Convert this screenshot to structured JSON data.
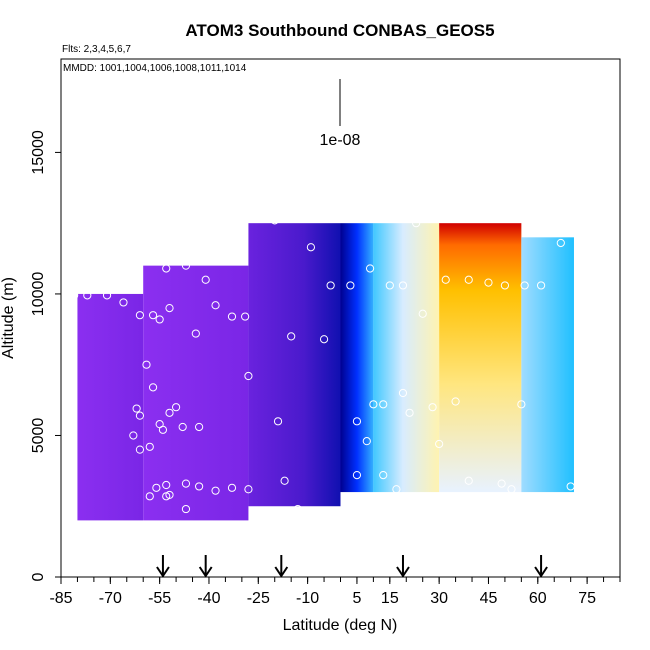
{
  "chart_data": {
    "type": "heatmap",
    "title": "ATOM3 Southbound CONBAS_GEOS5",
    "flights_label": "Flts: 2,3,4,5,6,7",
    "dates_label": "MMDD: 1001,1004,1006,1008,1011,1014",
    "xlabel": "Latitude (deg N)",
    "ylabel": "Altitude (m)",
    "xlim": [
      -85,
      85
    ],
    "ylim": [
      0,
      18300
    ],
    "x_ticks": [
      -85,
      -70,
      -55,
      -40,
      -25,
      -10,
      5,
      15,
      30,
      45,
      60,
      75
    ],
    "y_ticks": [
      0,
      5000,
      10000,
      15000
    ],
    "scale_bar_label": "1e-08",
    "arrow_latitudes": [
      -54,
      -41,
      -18,
      19,
      61
    ],
    "colors": {
      "purple": "#8a2be2",
      "indigo": "#5a1fd6",
      "navy": "#00008b",
      "blue": "#0022ee",
      "cyan": "#33ccff",
      "lightblue": "#cce8ff",
      "cream": "#fff8d0",
      "yellow": "#ffd700",
      "orange": "#ff8c00",
      "red": "#dd0000"
    },
    "profiles": [
      {
        "x": [
          -80,
          -60
        ],
        "y": [
          2000,
          10000
        ],
        "field": "purple"
      },
      {
        "x": [
          -60,
          -28
        ],
        "y": [
          2000,
          11000
        ],
        "field": "purple"
      },
      {
        "x": [
          -28,
          0
        ],
        "y": [
          2500,
          12500
        ],
        "field": "indigo"
      },
      {
        "x": [
          0,
          10
        ],
        "y": [
          3000,
          12500
        ],
        "field": "navy-blue"
      },
      {
        "x": [
          10,
          30
        ],
        "y": [
          3000,
          12500
        ],
        "field": "cyan-yellow"
      },
      {
        "x": [
          30,
          55
        ],
        "y": [
          3000,
          12500
        ],
        "field": "yellow-red"
      },
      {
        "x": [
          55,
          71
        ],
        "y": [
          3000,
          12000
        ],
        "field": "cyan"
      }
    ],
    "sample_points": [
      [
        -81,
        9950
      ],
      [
        -77,
        9950
      ],
      [
        -71,
        9950
      ],
      [
        -68,
        10250
      ],
      [
        -66,
        9700
      ],
      [
        -64,
        10500
      ],
      [
        -61,
        9250
      ],
      [
        -57,
        9250
      ],
      [
        -55,
        9100
      ],
      [
        -53,
        10900
      ],
      [
        -52,
        9500
      ],
      [
        -47,
        11000
      ],
      [
        -44,
        8600
      ],
      [
        -41,
        10500
      ],
      [
        -38,
        9600
      ],
      [
        -33,
        9200
      ],
      [
        -29,
        9200
      ],
      [
        -20,
        12600
      ],
      [
        -15,
        8500
      ],
      [
        -9,
        11650
      ],
      [
        -5,
        8400
      ],
      [
        -3,
        10300
      ],
      [
        -59,
        7500
      ],
      [
        -57,
        6700
      ],
      [
        -62,
        5950
      ],
      [
        -61,
        5700
      ],
      [
        -55,
        5400
      ],
      [
        -52,
        5800
      ],
      [
        -50,
        6000
      ],
      [
        -63,
        5000
      ],
      [
        -61,
        4500
      ],
      [
        -58,
        4600
      ],
      [
        -54,
        5200
      ],
      [
        -48,
        5300
      ],
      [
        -43,
        5300
      ],
      [
        -28,
        7100
      ],
      [
        -19,
        5500
      ],
      [
        -56,
        3150
      ],
      [
        -53,
        3250
      ],
      [
        -52,
        2900
      ],
      [
        -47,
        3300
      ],
      [
        -43,
        3200
      ],
      [
        -58,
        2850
      ],
      [
        -53,
        2850
      ],
      [
        -38,
        3050
      ],
      [
        -33,
        3150
      ],
      [
        -28,
        3100
      ],
      [
        -17,
        3400
      ],
      [
        -13,
        2400
      ],
      [
        -47,
        2400
      ],
      [
        3,
        10300
      ],
      [
        9,
        10900
      ],
      [
        15,
        10300
      ],
      [
        19,
        10300
      ],
      [
        23,
        12500
      ],
      [
        25,
        9300
      ],
      [
        32,
        10500
      ],
      [
        39,
        10500
      ],
      [
        45,
        10400
      ],
      [
        50,
        10300
      ],
      [
        56,
        10300
      ],
      [
        61,
        10300
      ],
      [
        67,
        11800
      ],
      [
        10,
        6100
      ],
      [
        13,
        6100
      ],
      [
        19,
        6500
      ],
      [
        21,
        5800
      ],
      [
        28,
        6000
      ],
      [
        35,
        6200
      ],
      [
        5,
        5500
      ],
      [
        8,
        4800
      ],
      [
        30,
        4700
      ],
      [
        13,
        3600
      ],
      [
        5,
        3600
      ],
      [
        17,
        3100
      ],
      [
        39,
        3400
      ],
      [
        49,
        3300
      ],
      [
        52,
        3100
      ],
      [
        70,
        3200
      ],
      [
        55,
        6100
      ]
    ]
  }
}
